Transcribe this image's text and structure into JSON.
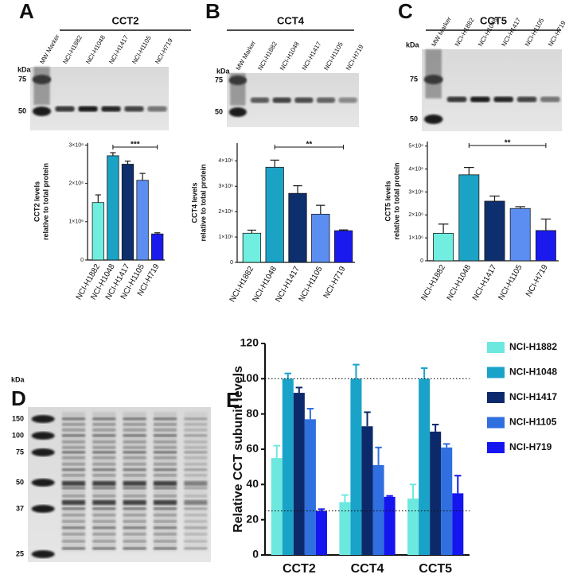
{
  "panels": [
    {
      "letter": "A",
      "header": "CCT2",
      "blot": {
        "unit": "kDa",
        "lanes": [
          "MW Marker",
          "NCI-H1882",
          "NCI-H1048",
          "NCI-H1417",
          "NCI-H1105",
          "NCI-H719"
        ],
        "markers": [
          "75",
          "50"
        ]
      }
    },
    {
      "letter": "B",
      "header": "CCT4",
      "blot": {
        "unit": "kDa",
        "lanes": [
          "MW Marker",
          "NCI-H1882",
          "NCI-H1048",
          "NCI-H1417",
          "NCI-H1105",
          "NCI-H719"
        ],
        "markers": [
          "75",
          "50"
        ]
      }
    },
    {
      "letter": "C",
      "header": "CCT5",
      "blot": {
        "unit": "kDa",
        "lanes": [
          "MW Marker",
          "NCI-H1882",
          "NCI-H1048",
          "NCI-H1417",
          "NCI-H1105",
          "NCI-H719"
        ],
        "markers": [
          "75",
          "50"
        ]
      }
    },
    {
      "letter": "D",
      "blot": {
        "unit": "kDa",
        "markers": [
          "150",
          "100",
          "75",
          "50",
          "37",
          "25"
        ]
      }
    },
    {
      "letter": "E"
    }
  ],
  "chart_data": [
    {
      "type": "bar",
      "ylabel": [
        "CCT2 levels",
        "relative to total protein"
      ],
      "categories": [
        "NCI-H1882",
        "NCI-H1048",
        "NCI-H1417",
        "NCI-H1105",
        "NCI-H719"
      ],
      "values": [
        1500000,
        2720000,
        2500000,
        2080000,
        680000
      ],
      "errors": [
        200000,
        80000,
        80000,
        180000,
        30000
      ],
      "colors": [
        "#70efe0",
        "#1ba3c6",
        "#0d2f6e",
        "#5b8ef0",
        "#1a1aee"
      ],
      "significance": "***",
      "ylim": [
        0,
        3050000
      ],
      "yticks": [
        0,
        {
          "value": 1000000,
          "label": "1×10⁶"
        },
        {
          "value": 2000000,
          "label": "2×10⁶"
        },
        {
          "value": 3000000,
          "label": "3×10⁶"
        }
      ]
    },
    {
      "type": "bar",
      "ylabel": [
        "CCT4 levels",
        "relative to total protein"
      ],
      "categories": [
        "NCI-H1882",
        "NCI-H1048",
        "NCI-H1417",
        "NCI-H1105",
        "NCI-H719"
      ],
      "values": [
        1150000,
        3750000,
        2720000,
        1900000,
        1250000
      ],
      "errors": [
        120000,
        280000,
        300000,
        350000,
        30000
      ],
      "colors": [
        "#70efe0",
        "#1ba3c6",
        "#0d2f6e",
        "#5b8ef0",
        "#1a1aee"
      ],
      "significance": "**",
      "ylim": [
        0,
        4700000
      ],
      "yticks": [
        0,
        {
          "value": 1000000,
          "label": "1×10⁶"
        },
        {
          "value": 2000000,
          "label": "2×10⁶"
        },
        {
          "value": 3000000,
          "label": "3×10⁶"
        },
        {
          "value": 4000000,
          "label": "4×10⁶"
        }
      ]
    },
    {
      "type": "bar",
      "ylabel": [
        "CCT5 levels",
        "relative to total protein"
      ],
      "categories": [
        "NCI-H1882",
        "NCI-H1048",
        "NCI-H1417",
        "NCI-H1105",
        "NCI-H719"
      ],
      "values": [
        1200000,
        3750000,
        2600000,
        2280000,
        1320000
      ],
      "errors": [
        400000,
        320000,
        220000,
        80000,
        500000
      ],
      "colors": [
        "#70efe0",
        "#1ba3c6",
        "#0d2f6e",
        "#5b8ef0",
        "#1a1aee"
      ],
      "significance": "**",
      "ylim": [
        0,
        5200000
      ],
      "yticks": [
        0,
        {
          "value": 1000000,
          "label": "1×10⁶"
        },
        {
          "value": 2000000,
          "label": "2×10⁶"
        },
        {
          "value": 3000000,
          "label": "3×10⁶"
        },
        {
          "value": 4000000,
          "label": "4×10⁶"
        },
        {
          "value": 5000000,
          "label": "5×10⁶"
        }
      ]
    },
    {
      "type": "grouped_bar",
      "ylabel": [
        "Relative CCT subunit levels"
      ],
      "categories": [
        "CCT2",
        "CCT4",
        "CCT5"
      ],
      "series": [
        {
          "name": "NCI-H1882",
          "color": "#6de8df",
          "values": [
            55,
            30,
            32
          ],
          "errors": [
            7,
            4,
            8
          ]
        },
        {
          "name": "NCI-H1048",
          "color": "#1aa3c8",
          "values": [
            100,
            100,
            100
          ],
          "errors": [
            3,
            8,
            6
          ]
        },
        {
          "name": "NCI-H1417",
          "color": "#0c2a6b",
          "values": [
            92,
            73,
            70
          ],
          "errors": [
            3,
            8,
            4
          ]
        },
        {
          "name": "NCI-H1105",
          "color": "#2f6fdf",
          "values": [
            77,
            51,
            61
          ],
          "errors": [
            6,
            10,
            2
          ]
        },
        {
          "name": "NCI-H719",
          "color": "#1515f0",
          "values": [
            25,
            33,
            35
          ],
          "errors": [
            1,
            0.5,
            10
          ]
        }
      ],
      "reference_lines": [
        100,
        25
      ],
      "ylim": [
        0,
        120
      ],
      "yticks": [
        0,
        20,
        40,
        60,
        80,
        100,
        120
      ]
    }
  ]
}
